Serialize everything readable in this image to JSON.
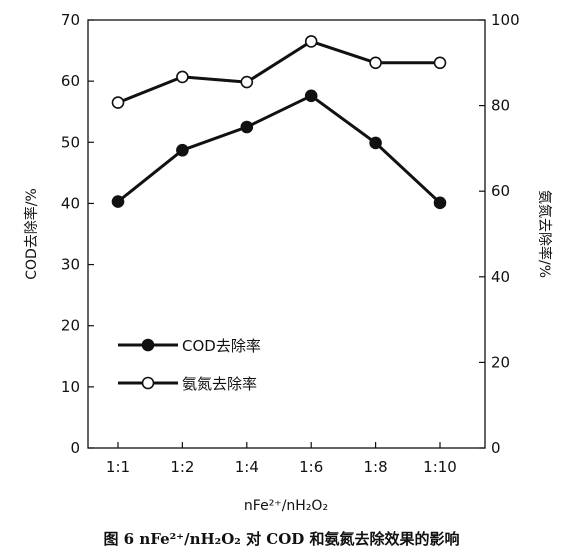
{
  "chart_data": {
    "type": "line",
    "categories": [
      "1:1",
      "1:2",
      "1:4",
      "1:6",
      "1:8",
      "1:10"
    ],
    "xlabel": "nFe²⁺/nH₂O₂",
    "ylabel_left": "COD去除率/%",
    "ylabel_right": "氨氮去除率/%",
    "ylim_left": [
      0,
      70
    ],
    "yticks_left": [
      0,
      10,
      20,
      30,
      40,
      50,
      60,
      70
    ],
    "ylim_right": [
      0,
      100
    ],
    "yticks_right": [
      0,
      20,
      40,
      60,
      80,
      100
    ],
    "grid": false,
    "legend_position": "lower-left",
    "series": [
      {
        "name": "COD去除率",
        "axis": "left",
        "marker": "filled-circle",
        "values": [
          40.3,
          48.7,
          52.5,
          57.6,
          49.9,
          40.1
        ]
      },
      {
        "name": "氨氮去除率",
        "axis": "right",
        "marker": "open-circle",
        "values": [
          80.7,
          86.7,
          85.5,
          95.0,
          90.0,
          90.0
        ]
      }
    ]
  },
  "caption": "图 6  nFe²⁺/nH₂O₂ 对 COD 和氨氮去除效果的影响"
}
